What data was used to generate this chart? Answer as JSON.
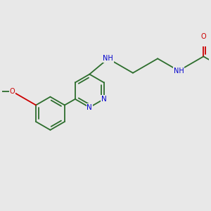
{
  "bg_color": "#e8e8e8",
  "bond_color": "#2d6e2d",
  "n_color": "#0000cc",
  "o_color": "#cc0000",
  "font_size": 7.0,
  "bond_lw": 1.3,
  "figsize": [
    3.0,
    3.0
  ],
  "dpi": 100,
  "xlim": [
    -1.0,
    9.5
  ],
  "ylim": [
    -1.5,
    4.5
  ]
}
